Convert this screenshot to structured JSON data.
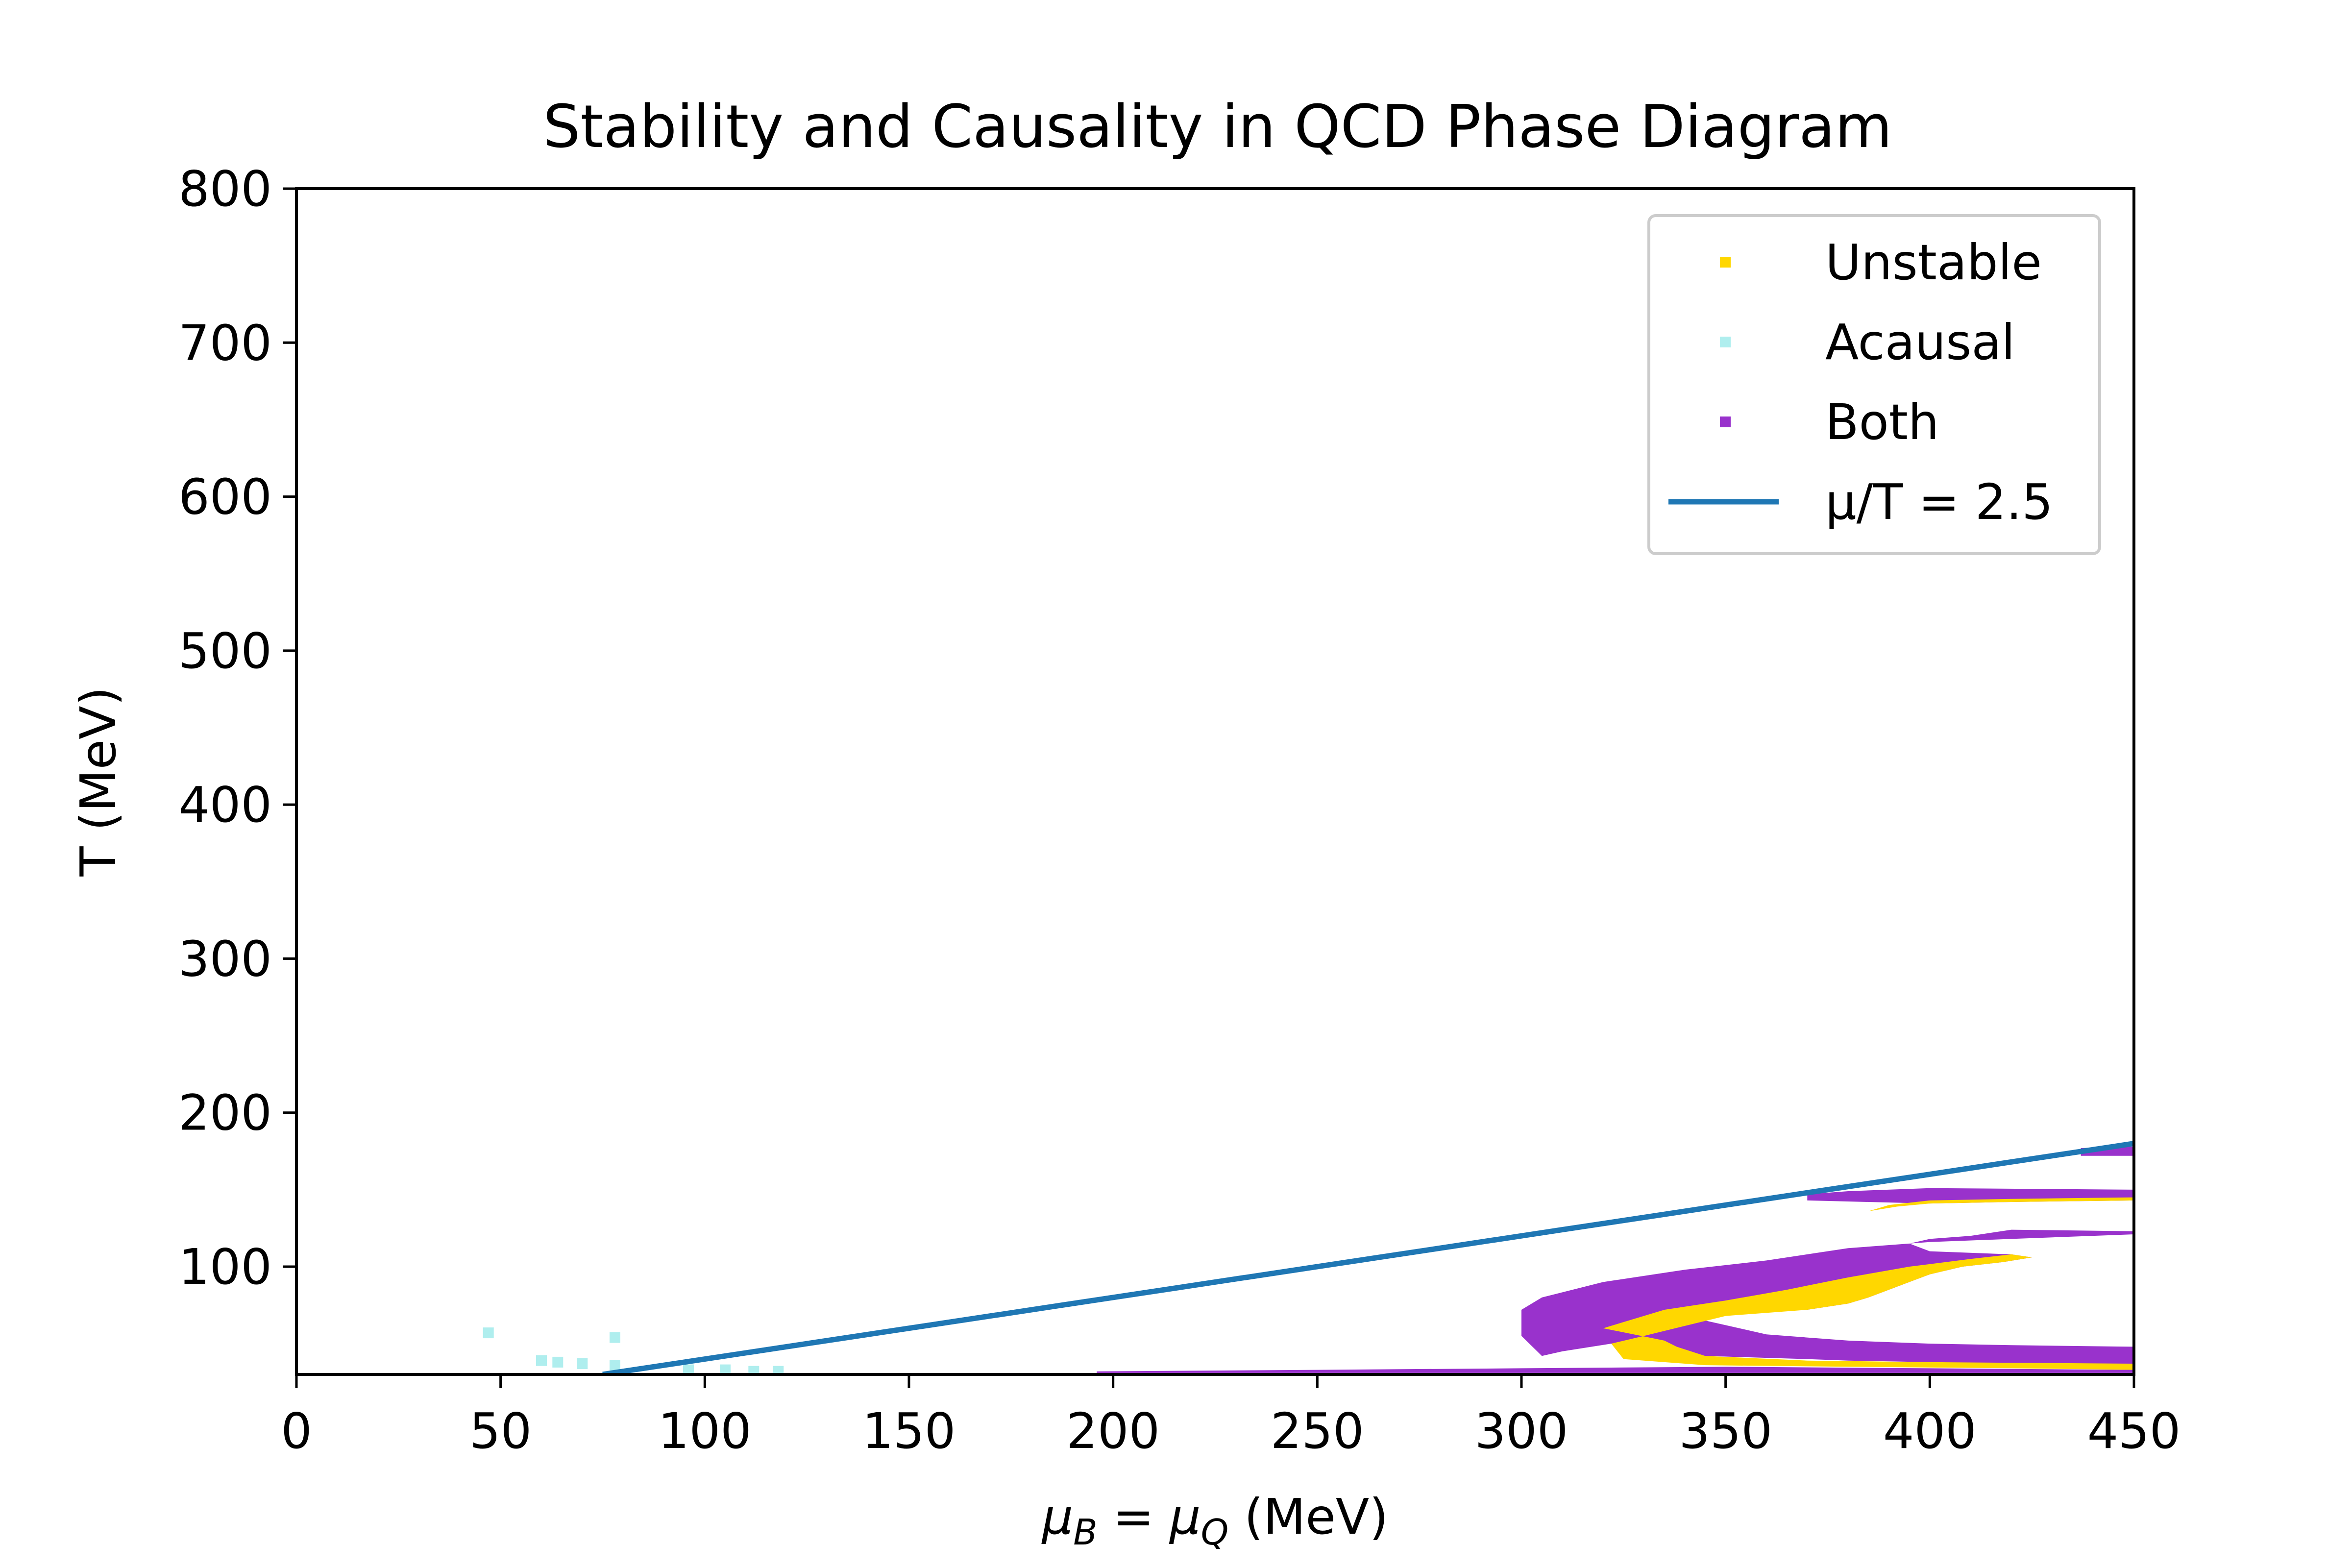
{
  "chart_data": {
    "type": "scatter",
    "title": "Stability and Causality in QCD Phase Diagram",
    "xlabel": {
      "parts": [
        {
          "text": "μ",
          "style": "italic"
        },
        {
          "text": "B",
          "style": "sub-italic"
        },
        {
          "text": " = ",
          "style": "normal"
        },
        {
          "text": "μ",
          "style": "italic"
        },
        {
          "text": "Q",
          "style": "sub-italic"
        },
        {
          "text": " (MeV)",
          "style": "normal"
        }
      ]
    },
    "ylabel": "T (MeV)",
    "xlim": [
      0,
      450
    ],
    "ylim": [
      30,
      800
    ],
    "xticks": [
      0,
      50,
      100,
      150,
      200,
      250,
      300,
      350,
      400,
      450
    ],
    "yticks": [
      100,
      200,
      300,
      400,
      500,
      600,
      700,
      800
    ],
    "grid": false,
    "legend_position": "top-right",
    "colors": {
      "unstable": "#FFD700",
      "acausal": "#AFEEEE",
      "both": "#9932CC",
      "line": "#1F77B4"
    },
    "series": [
      {
        "name": "Unstable",
        "kind": "region",
        "polygons": [
          [
            [
              320,
              60
            ],
            [
              335,
              72
            ],
            [
              350,
              78
            ],
            [
              365,
              85
            ],
            [
              380,
              93
            ],
            [
              395,
              100
            ],
            [
              410,
              105
            ],
            [
              420,
              108
            ],
            [
              425,
              106
            ],
            [
              418,
              103
            ],
            [
              408,
              100
            ],
            [
              400,
              95
            ],
            [
              395,
              90
            ],
            [
              390,
              85
            ],
            [
              385,
              80
            ],
            [
              380,
              76
            ],
            [
              370,
              72
            ],
            [
              350,
              68
            ],
            [
              330,
              55
            ],
            [
              322,
              50
            ],
            [
              325,
              40
            ],
            [
              345,
              36
            ],
            [
              380,
              35
            ],
            [
              420,
              34
            ],
            [
              450,
              33
            ],
            [
              450,
              37
            ],
            [
              400,
              38
            ],
            [
              370,
              39
            ],
            [
              345,
              42
            ],
            [
              338,
              48
            ],
            [
              335,
              52
            ]
          ],
          [
            [
              385,
              136
            ],
            [
              390,
              140
            ],
            [
              400,
              143
            ],
            [
              420,
              144
            ],
            [
              450,
              145
            ],
            [
              450,
              143
            ],
            [
              420,
              142
            ],
            [
              400,
              141
            ],
            [
              392,
              139
            ]
          ]
        ]
      },
      {
        "name": "Acausal",
        "kind": "points",
        "x": [
          47,
          60,
          64,
          70,
          78,
          78,
          96,
          105,
          112,
          118
        ],
        "y": [
          57,
          39,
          38,
          37,
          54,
          36,
          33,
          33,
          32,
          32
        ]
      },
      {
        "name": "Both",
        "kind": "region",
        "polygons": [
          [
            [
              300,
              72
            ],
            [
              305,
              80
            ],
            [
              320,
              90
            ],
            [
              340,
              98
            ],
            [
              360,
              104
            ],
            [
              380,
              112
            ],
            [
              400,
              116
            ],
            [
              420,
              118
            ],
            [
              440,
              120
            ],
            [
              450,
              121
            ],
            [
              450,
              150
            ],
            [
              400,
              151
            ],
            [
              380,
              149
            ],
            [
              370,
              147
            ],
            [
              370,
              143
            ],
            [
              385,
              142
            ],
            [
              400,
              141
            ],
            [
              420,
              142
            ],
            [
              450,
              143
            ],
            [
              450,
              123
            ],
            [
              420,
              124
            ],
            [
              410,
              120
            ],
            [
              400,
              118
            ],
            [
              395,
              115
            ],
            [
              400,
              110
            ],
            [
              420,
              108
            ],
            [
              425,
              106
            ],
            [
              418,
              103
            ],
            [
              408,
              100
            ],
            [
              400,
              95
            ],
            [
              395,
              90
            ],
            [
              390,
              85
            ],
            [
              385,
              80
            ],
            [
              380,
              76
            ],
            [
              370,
              72
            ],
            [
              355,
              70
            ],
            [
              340,
              68
            ],
            [
              350,
              62
            ],
            [
              360,
              56
            ],
            [
              380,
              52
            ],
            [
              400,
              50
            ],
            [
              420,
              49
            ],
            [
              450,
              48
            ],
            [
              450,
              36
            ],
            [
              420,
              37
            ],
            [
              400,
              38
            ],
            [
              380,
              39
            ],
            [
              370,
              40
            ],
            [
              345,
              42
            ],
            [
              322,
              50
            ],
            [
              310,
              45
            ],
            [
              305,
              42
            ],
            [
              300,
              55
            ]
          ],
          [
            [
              196,
              32
            ],
            [
              250,
              33
            ],
            [
              300,
              34
            ],
            [
              350,
              35
            ],
            [
              400,
              34
            ],
            [
              450,
              33
            ],
            [
              450,
              31
            ],
            [
              196,
              31
            ]
          ],
          [
            [
              437,
              172
            ],
            [
              450,
              172
            ],
            [
              450,
              178
            ],
            [
              437,
              177
            ]
          ]
        ]
      },
      {
        "name": "μ/T = 2.5",
        "kind": "line",
        "x": [
          75,
          450
        ],
        "y": [
          30,
          180
        ]
      }
    ]
  }
}
